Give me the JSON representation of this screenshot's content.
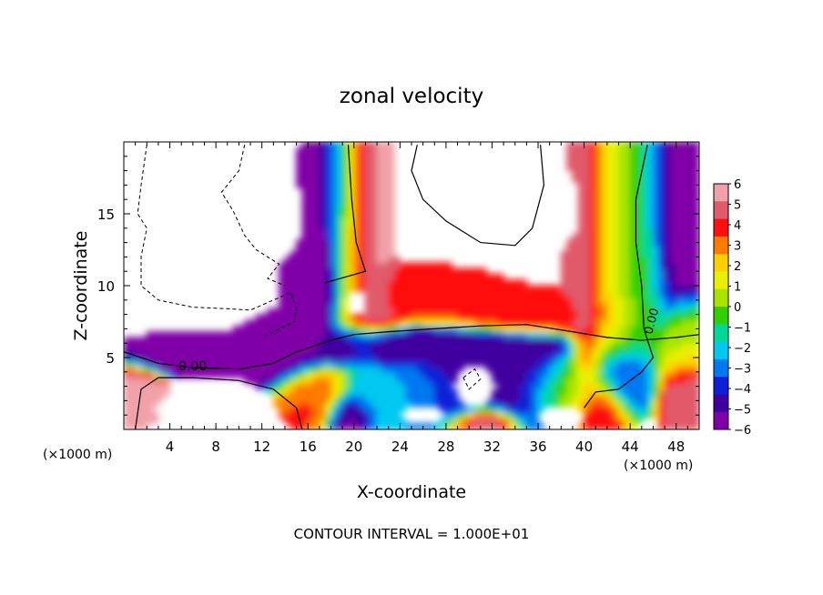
{
  "chart_data": {
    "type": "heatmap",
    "title": "zonal velocity",
    "xlabel": "X-coordinate",
    "ylabel": "Z-coordinate",
    "x_unit": "(×1000 m)",
    "x_unit_right": "(×1000 m)",
    "xlim": [
      0,
      50
    ],
    "ylim": [
      0,
      20
    ],
    "x_ticks": [
      "4",
      "8",
      "12",
      "16",
      "20",
      "24",
      "28",
      "32",
      "36",
      "40",
      "44",
      "48"
    ],
    "y_ticks": [
      "5",
      "10",
      "15"
    ],
    "contour_label_1": "0.00",
    "contour_label_2": "0.00",
    "footer": "CONTOUR INTERVAL = 1.000E+01",
    "colorbar": {
      "ticks": [
        "6",
        "5",
        "4",
        "3",
        "2",
        "1",
        "0",
        "−1",
        "−2",
        "−3",
        "−4",
        "−5",
        "−6"
      ],
      "colors": [
        "#f0a0a8",
        "#e05a6a",
        "#ff1010",
        "#ff7a00",
        "#ffd000",
        "#e8f000",
        "#a8e400",
        "#30d000",
        "#00d898",
        "#00c8f0",
        "#0078f0",
        "#1020d8",
        "#4000a0",
        "#8000a8"
      ]
    },
    "colormap_range": [
      -6,
      6
    ],
    "field_blobs": [
      {
        "x": 0.2,
        "z": 2.5,
        "sx": 2.2,
        "sz": 1.5,
        "v": 5.5
      },
      {
        "x": 7.5,
        "z": 5.2,
        "sx": 6.0,
        "sz": 0.9,
        "v": -6
      },
      {
        "x": 14,
        "z": 5.5,
        "sx": 2.5,
        "sz": 1.6,
        "v": -5.5
      },
      {
        "x": 16.5,
        "z": 10.5,
        "sx": 1.8,
        "sz": 2.0,
        "v": -5.5
      },
      {
        "x": 17.2,
        "z": 15,
        "sx": 1.3,
        "sz": 4.5,
        "v": -6
      },
      {
        "x": 18.5,
        "z": 17,
        "sx": 1.2,
        "sz": 3.5,
        "v": -4
      },
      {
        "x": 19.5,
        "z": 15,
        "sx": 1.5,
        "sz": 5.0,
        "v": 1.0
      },
      {
        "x": 21,
        "z": 15,
        "sx": 1.5,
        "sz": 5.5,
        "v": 5.5
      },
      {
        "x": 22.5,
        "z": 9,
        "sx": 1.5,
        "sz": 1.5,
        "v": 4.5
      },
      {
        "x": 27,
        "z": 9.3,
        "sx": 4.0,
        "sz": 1.2,
        "v": 3.5
      },
      {
        "x": 35,
        "z": 8.3,
        "sx": 5.0,
        "sz": 1.0,
        "v": 4.0
      },
      {
        "x": 40.5,
        "z": 13,
        "sx": 1.3,
        "sz": 6.0,
        "v": 5.0
      },
      {
        "x": 42.5,
        "z": 13,
        "sx": 1.6,
        "sz": 6.5,
        "v": 1.2
      },
      {
        "x": 45,
        "z": 13,
        "sx": 1.6,
        "sz": 6.5,
        "v": -0.5
      },
      {
        "x": 47.8,
        "z": 15,
        "sx": 1.8,
        "sz": 5.0,
        "v": -5.5
      },
      {
        "x": 48.5,
        "z": 6,
        "sx": 1.5,
        "sz": 2.0,
        "v": 0.8
      },
      {
        "x": 48.8,
        "z": 2.5,
        "sx": 1.5,
        "sz": 2.0,
        "v": 5.0
      },
      {
        "x": 24.5,
        "z": 5.8,
        "sx": 9.0,
        "sz": 0.9,
        "v": -5.0
      },
      {
        "x": 24,
        "z": 2.5,
        "sx": 3.5,
        "sz": 1.5,
        "v": -2.5
      },
      {
        "x": 29,
        "z": 3.5,
        "sx": 2.5,
        "sz": 2.0,
        "v": -4.5
      },
      {
        "x": 35,
        "z": 3.0,
        "sx": 2.5,
        "sz": 2.0,
        "v": -5.0
      },
      {
        "x": 31.5,
        "z": 0.3,
        "sx": 2.0,
        "sz": 0.8,
        "v": 5.5
      },
      {
        "x": 38,
        "z": 2.5,
        "sx": 2.5,
        "sz": 1.5,
        "v": 0.8
      },
      {
        "x": 43.5,
        "z": 3.5,
        "sx": 1.8,
        "sz": 1.5,
        "v": -4.0
      },
      {
        "x": 41.5,
        "z": 1.5,
        "sx": 1.5,
        "sz": 1.5,
        "v": 4.5
      },
      {
        "x": 19.5,
        "z": 1.0,
        "sx": 1.2,
        "sz": 1.0,
        "v": -5.5
      },
      {
        "x": 16.5,
        "z": 2.5,
        "sx": 2.0,
        "sz": 1.5,
        "v": 3.5
      }
    ],
    "white_regions": [
      {
        "x": 9,
        "z": 15,
        "sx": 7.5,
        "sz": 5.5
      },
      {
        "x": 29,
        "z": 16,
        "sx": 5.5,
        "sz": 4.5
      },
      {
        "x": 36.5,
        "z": 15.5,
        "sx": 3.5,
        "sz": 4.0
      },
      {
        "x": 8,
        "z": 1.5,
        "sx": 6.0,
        "sz": 1.5
      },
      {
        "x": 20.3,
        "z": 8.8,
        "sx": 1.0,
        "sz": 0.9
      },
      {
        "x": 30.5,
        "z": 3.0,
        "sx": 2.0,
        "sz": 1.5
      },
      {
        "x": 38,
        "z": 0.8,
        "sx": 2.2,
        "sz": 0.9
      },
      {
        "x": 26,
        "z": 1.0,
        "sx": 2.0,
        "sz": 0.8
      }
    ],
    "contours": {
      "solid": [
        [
          [
            0,
            5.4
          ],
          [
            3,
            4.6
          ],
          [
            6,
            4.3
          ],
          [
            10,
            4.2
          ],
          [
            13,
            4.6
          ],
          [
            15,
            5.4
          ],
          [
            18,
            6.2
          ],
          [
            20,
            6.6
          ],
          [
            23,
            6.8
          ],
          [
            27,
            7.0
          ],
          [
            31,
            7.2
          ],
          [
            35,
            7.3
          ],
          [
            39,
            6.8
          ],
          [
            42,
            6.4
          ],
          [
            45,
            6.2
          ],
          [
            48,
            6.4
          ],
          [
            50,
            6.6
          ]
        ],
        [
          [
            19.5,
            19.8
          ],
          [
            19.8,
            16
          ],
          [
            20.2,
            13
          ],
          [
            21,
            11
          ],
          [
            17.5,
            10.2
          ]
        ],
        [
          [
            45.5,
            19.8
          ],
          [
            44.5,
            16
          ],
          [
            44.5,
            13
          ],
          [
            45,
            10
          ],
          [
            45.2,
            7
          ],
          [
            46,
            5
          ],
          [
            45,
            4
          ],
          [
            43,
            2.8
          ],
          [
            41,
            2.6
          ],
          [
            40,
            1.5
          ]
        ],
        [
          [
            25.5,
            19.8
          ],
          [
            25,
            18
          ],
          [
            26,
            16
          ],
          [
            28,
            14.5
          ],
          [
            31,
            13
          ],
          [
            34,
            12.8
          ],
          [
            35.5,
            14
          ],
          [
            36.5,
            17
          ],
          [
            36.2,
            19.8
          ]
        ],
        [
          [
            1,
            0
          ],
          [
            1.5,
            2.8
          ],
          [
            3,
            3.6
          ],
          [
            6,
            3.6
          ],
          [
            10,
            3.4
          ],
          [
            13,
            2.8
          ],
          [
            15,
            1.5
          ],
          [
            15.5,
            0
          ]
        ]
      ],
      "dashed": [
        [
          [
            2,
            19.8
          ],
          [
            1.5,
            17
          ],
          [
            1.2,
            15
          ],
          [
            2,
            14
          ],
          [
            1.5,
            12
          ],
          [
            1.5,
            10
          ],
          [
            3,
            9
          ],
          [
            6,
            8.5
          ],
          [
            9,
            8.4
          ],
          [
            11,
            8.3
          ],
          [
            13,
            9
          ],
          [
            14.5,
            9.5
          ],
          [
            15,
            8.5
          ],
          [
            14.8,
            7.5
          ],
          [
            13,
            6.8
          ],
          [
            12,
            6.5
          ]
        ],
        [
          [
            10.5,
            19.8
          ],
          [
            10,
            18
          ],
          [
            8.5,
            16.5
          ],
          [
            9.5,
            15.2
          ],
          [
            10.5,
            13.5
          ],
          [
            11.5,
            12.5
          ],
          [
            13.5,
            11.5
          ],
          [
            12.5,
            10.5
          ],
          [
            14,
            10
          ]
        ],
        [
          [
            29.5,
            3.6
          ],
          [
            30.5,
            4.2
          ],
          [
            31,
            3.5
          ],
          [
            30,
            2.8
          ],
          [
            29.5,
            3.6
          ]
        ]
      ]
    }
  }
}
